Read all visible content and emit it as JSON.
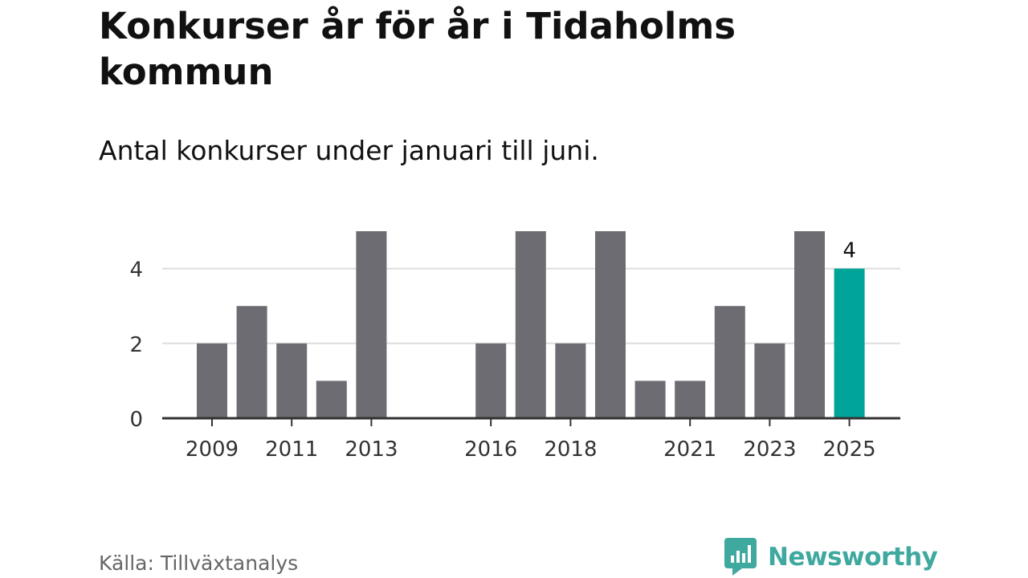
{
  "header": {
    "title": "Konkurser år för år i Tidaholms kommun",
    "subtitle": "Antal konkurser under januari till juni."
  },
  "chart_data": {
    "type": "bar",
    "title": "Konkurser år för år i Tidaholms kommun",
    "subtitle": "Antal konkurser under januari till juni.",
    "categories": [
      "2009",
      "2010",
      "2011",
      "2012",
      "2013",
      "2014",
      "2015",
      "2016",
      "2017",
      "2018",
      "2019",
      "2020",
      "2021",
      "2022",
      "2023",
      "2024",
      "2025"
    ],
    "values": [
      2,
      3,
      2,
      1,
      5,
      0,
      0,
      2,
      5,
      2,
      5,
      1,
      1,
      3,
      2,
      5,
      4
    ],
    "x_tick_labels": [
      "2009",
      "2011",
      "2013",
      "2016",
      "2018",
      "2021",
      "2023",
      "2025"
    ],
    "y_ticks": [
      0,
      2,
      4
    ],
    "ylim": [
      0,
      5
    ],
    "grid": true,
    "highlight": {
      "category": "2025",
      "label": "4"
    },
    "colors": {
      "bar": "#6d6c72",
      "highlight": "#00a499",
      "grid": "#dddddd",
      "axis": "#333333"
    }
  },
  "footer": {
    "source": "Källa: Tillväxtanalys",
    "brand": "Newsworthy",
    "brand_icon": "newsworthy-logo-icon"
  }
}
